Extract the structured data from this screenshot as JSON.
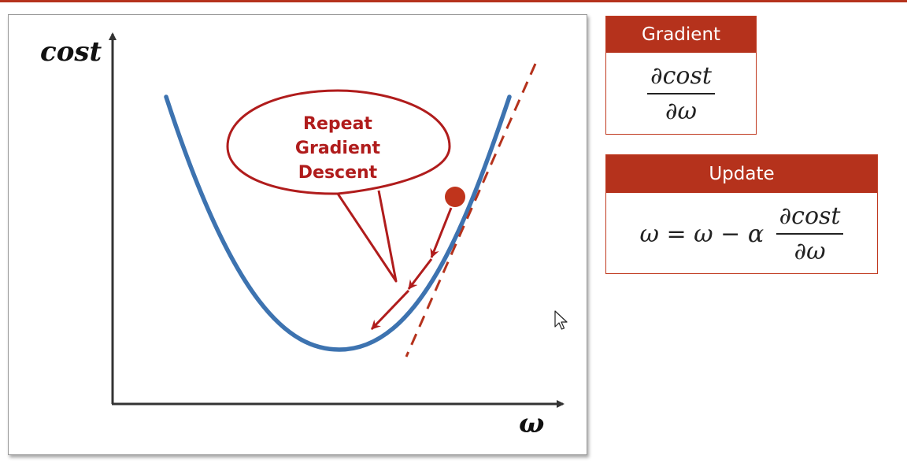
{
  "diagram": {
    "y_axis_label": "cost",
    "x_axis_label": "ω",
    "bubble_lines": [
      "Repeat",
      "Gradient",
      "Descent"
    ],
    "curve_color": "#3d73b0",
    "accent_color": "#b5321c"
  },
  "gradient_box": {
    "header": "Gradient",
    "numerator": "∂cost",
    "denominator": "∂ω"
  },
  "update_box": {
    "header": "Update",
    "lhs": "ω = ω − α",
    "numerator": "∂cost",
    "denominator": "∂ω"
  }
}
